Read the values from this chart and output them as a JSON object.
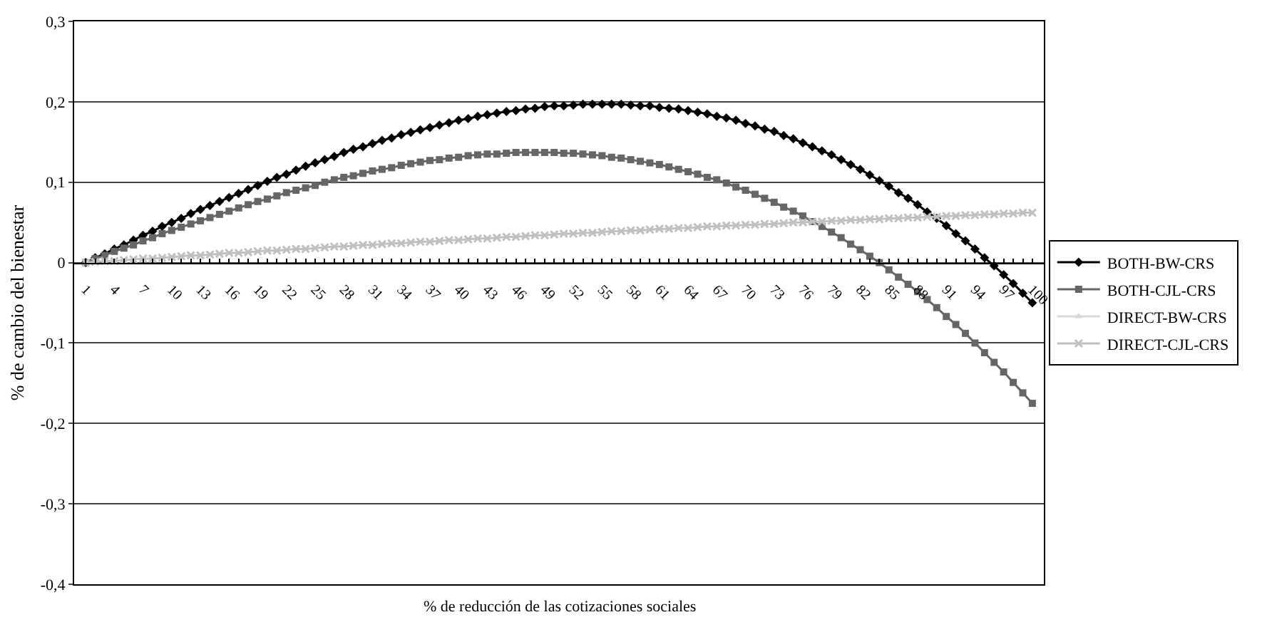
{
  "chart_data": {
    "type": "line",
    "xlabel": "% de reducción de las cotizaciones sociales",
    "ylabel": "% de cambio del bienestar",
    "categories": [
      "1",
      null,
      null,
      "4",
      null,
      null,
      "7",
      null,
      null,
      "10",
      null,
      null,
      "13",
      null,
      null,
      "16",
      null,
      null,
      "19",
      null,
      null,
      "22",
      null,
      null,
      "25",
      null,
      null,
      "28",
      null,
      null,
      "31",
      null,
      null,
      "34",
      null,
      null,
      "37",
      null,
      null,
      "40",
      null,
      null,
      "43",
      null,
      null,
      "46",
      null,
      null,
      "49",
      null,
      null,
      "52",
      null,
      null,
      "55",
      null,
      null,
      "58",
      null,
      null,
      "61",
      null,
      null,
      "64",
      null,
      null,
      "67",
      null,
      null,
      "70",
      null,
      null,
      "73",
      null,
      null,
      "76",
      null,
      null,
      "79",
      null,
      null,
      "82",
      null,
      null,
      "85",
      null,
      null,
      "88",
      null,
      null,
      "91",
      null,
      null,
      "94",
      null,
      null,
      "97",
      null,
      null,
      "100"
    ],
    "ylim": [
      -0.4,
      0.3
    ],
    "yticks": [
      {
        "value": -0.4,
        "label": "-0,4"
      },
      {
        "value": -0.3,
        "label": "-0,3"
      },
      {
        "value": -0.2,
        "label": "-0,2"
      },
      {
        "value": -0.1,
        "label": "-0,1"
      },
      0,
      {
        "value": 0.1,
        "label": "0,1"
      },
      {
        "value": 0.2,
        "label": "0,2"
      },
      {
        "value": 0.3,
        "label": "0,3"
      }
    ],
    "grid": "y",
    "legend": "right",
    "line_style": "solid",
    "series": [
      {
        "name": "BOTH-BW-CRS",
        "color": "#000000",
        "marker": "diamond",
        "values": [
          0,
          0.006,
          0.011,
          0.017,
          0.022,
          0.028,
          0.034,
          0.039,
          0.045,
          0.05,
          0.055,
          0.061,
          0.066,
          0.071,
          0.076,
          0.081,
          0.086,
          0.091,
          0.096,
          0.101,
          0.106,
          0.11,
          0.115,
          0.12,
          0.124,
          0.128,
          0.132,
          0.137,
          0.141,
          0.144,
          0.148,
          0.152,
          0.155,
          0.159,
          0.162,
          0.165,
          0.168,
          0.171,
          0.174,
          0.177,
          0.179,
          0.182,
          0.184,
          0.186,
          0.188,
          0.189,
          0.191,
          0.192,
          0.194,
          0.195,
          0.195,
          0.196,
          0.197,
          0.197,
          0.197,
          0.197,
          0.197,
          0.196,
          0.195,
          0.195,
          0.193,
          0.192,
          0.191,
          0.189,
          0.187,
          0.185,
          0.182,
          0.18,
          0.177,
          0.173,
          0.17,
          0.166,
          0.163,
          0.158,
          0.154,
          0.149,
          0.144,
          0.139,
          0.134,
          0.128,
          0.122,
          0.116,
          0.109,
          0.102,
          0.095,
          0.087,
          0.08,
          0.072,
          0.063,
          0.055,
          0.046,
          0.036,
          0.027,
          0.017,
          0.006,
          -0.004,
          -0.015,
          -0.026,
          -0.038,
          -0.05
        ]
      },
      {
        "name": "BOTH-CJL-CRS",
        "color": "#666666",
        "marker": "square",
        "values": [
          0,
          0.005,
          0.009,
          0.014,
          0.018,
          0.022,
          0.027,
          0.031,
          0.036,
          0.04,
          0.044,
          0.048,
          0.052,
          0.056,
          0.06,
          0.064,
          0.068,
          0.072,
          0.076,
          0.079,
          0.083,
          0.087,
          0.09,
          0.093,
          0.096,
          0.1,
          0.103,
          0.106,
          0.108,
          0.111,
          0.114,
          0.116,
          0.118,
          0.121,
          0.123,
          0.125,
          0.127,
          0.128,
          0.13,
          0.131,
          0.133,
          0.134,
          0.135,
          0.135,
          0.136,
          0.137,
          0.137,
          0.137,
          0.137,
          0.137,
          0.136,
          0.136,
          0.135,
          0.134,
          0.133,
          0.131,
          0.13,
          0.128,
          0.126,
          0.124,
          0.122,
          0.119,
          0.116,
          0.113,
          0.11,
          0.106,
          0.103,
          0.099,
          0.094,
          0.09,
          0.085,
          0.08,
          0.075,
          0.069,
          0.064,
          0.058,
          0.051,
          0.045,
          0.038,
          0.031,
          0.023,
          0.016,
          0.008,
          0,
          -0.009,
          -0.018,
          -0.027,
          -0.036,
          -0.046,
          -0.056,
          -0.067,
          -0.077,
          -0.088,
          -0.1,
          -0.112,
          -0.124,
          -0.136,
          -0.149,
          -0.162,
          -0.175
        ]
      },
      {
        "name": "DIRECT-BW-CRS",
        "color": "#d9d9d9",
        "marker": "triangle",
        "values": [
          null,
          null,
          null,
          null,
          null,
          null,
          null,
          null,
          null,
          null,
          null,
          null,
          null,
          null,
          null,
          null,
          null,
          null,
          null,
          null,
          null,
          null,
          null,
          null,
          null,
          null,
          null,
          null,
          null,
          null,
          null,
          null,
          null,
          null,
          null,
          null,
          null,
          null,
          null,
          null,
          null,
          null,
          null,
          null,
          null,
          null,
          null,
          null,
          null,
          null,
          null,
          null,
          null,
          null,
          null,
          null,
          null,
          null,
          null,
          null,
          null,
          null,
          null,
          null,
          null,
          null,
          null,
          null,
          null,
          null,
          null,
          null,
          null,
          null,
          null,
          null,
          null,
          null,
          null,
          null,
          null,
          null,
          null,
          null,
          null,
          null,
          null,
          null,
          null,
          null,
          null,
          null,
          null,
          null,
          null,
          null,
          null,
          null,
          null,
          null
        ]
      },
      {
        "name": "DIRECT-CJL-CRS",
        "color": "#c0c0c0",
        "marker": "cross",
        "values": [
          0,
          0.001,
          0.002,
          0.002,
          0.003,
          0.004,
          0.005,
          0.005,
          0.006,
          0.007,
          0.008,
          0.009,
          0.009,
          0.01,
          0.011,
          0.012,
          0.012,
          0.013,
          0.014,
          0.015,
          0.015,
          0.016,
          0.017,
          0.017,
          0.018,
          0.019,
          0.02,
          0.02,
          0.021,
          0.022,
          0.022,
          0.023,
          0.024,
          0.024,
          0.025,
          0.026,
          0.026,
          0.027,
          0.028,
          0.028,
          0.029,
          0.03,
          0.03,
          0.031,
          0.032,
          0.032,
          0.033,
          0.034,
          0.034,
          0.035,
          0.036,
          0.036,
          0.037,
          0.037,
          0.038,
          0.039,
          0.039,
          0.04,
          0.04,
          0.041,
          0.042,
          0.042,
          0.043,
          0.043,
          0.044,
          0.045,
          0.045,
          0.046,
          0.046,
          0.047,
          0.047,
          0.048,
          0.048,
          0.049,
          0.05,
          0.05,
          0.051,
          0.051,
          0.052,
          0.052,
          0.053,
          0.053,
          0.054,
          0.054,
          0.055,
          0.055,
          0.056,
          0.056,
          0.057,
          0.057,
          0.058,
          0.058,
          0.059,
          0.059,
          0.06,
          0.06,
          0.061,
          0.061,
          0.062,
          0.062
        ]
      }
    ]
  }
}
